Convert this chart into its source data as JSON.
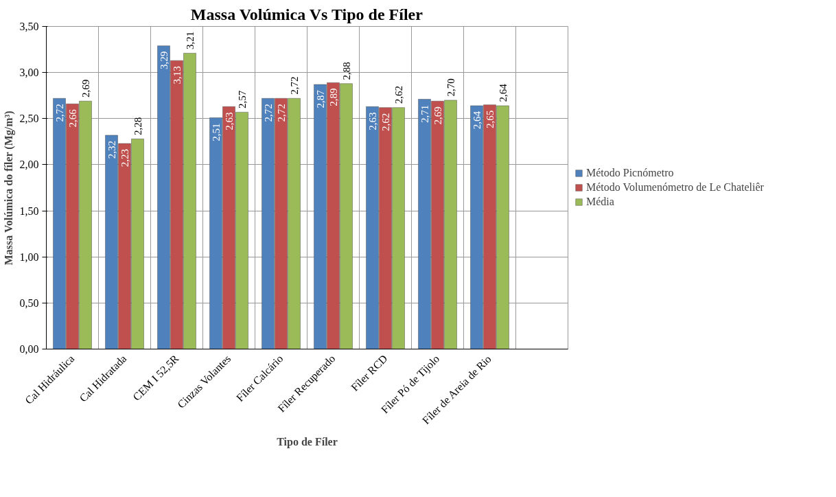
{
  "chart_data": {
    "type": "bar",
    "title": "Massa Volúmica Vs Tipo de Fíler",
    "xlabel": "Tipo de Fíler",
    "ylabel": "Massa Volúmica do fíler (Mg/m³)",
    "categories": [
      "Cal Hidráulica",
      "Cal Hidratada",
      "CEM I 52,5R",
      "Cinzas Volantes",
      "Fíler Calcário",
      "Fíler Recuperado",
      "Fíler RCD",
      "Fíler Pó de Tijolo",
      "Fíler de Areia de Rio",
      null
    ],
    "series": [
      {
        "name": "Método Picnómetro",
        "color": "#4f81bd",
        "values": [
          2.72,
          2.32,
          3.29,
          2.51,
          2.72,
          2.87,
          2.63,
          2.71,
          2.64,
          null
        ],
        "value_labels": [
          "2,72",
          "2,32",
          "3,29",
          "2,51",
          "2,72",
          "2,87",
          "2,63",
          "2,71",
          "2,64",
          null
        ]
      },
      {
        "name": "Método Volumenómetro de Le Chateliêr",
        "color": "#c0504d",
        "values": [
          2.66,
          2.23,
          3.13,
          2.63,
          2.72,
          2.89,
          2.62,
          2.69,
          2.65,
          null
        ],
        "value_labels": [
          "2,66",
          "2,23",
          "3,13",
          "2,63",
          "2,72",
          "2,89",
          "2,62",
          "2,69",
          "2,65",
          null
        ]
      },
      {
        "name": "Média",
        "color": "#9bbb59",
        "values": [
          2.69,
          2.28,
          3.21,
          2.57,
          2.72,
          2.88,
          2.62,
          2.7,
          2.64,
          null
        ],
        "value_labels": [
          "2,69",
          "2,28",
          "3,21",
          "2,57",
          "2,72",
          "2,88",
          "2,62",
          "2,70",
          "2,64",
          null
        ]
      }
    ],
    "ylim": [
      0,
      3.5
    ],
    "yticks": [
      {
        "value": 0,
        "label": "0,00"
      },
      {
        "value": 0.5,
        "label": "0,50"
      },
      {
        "value": 1,
        "label": "1,00"
      },
      {
        "value": 1.5,
        "label": "1,50"
      },
      {
        "value": 2,
        "label": "2,00"
      },
      {
        "value": 2.5,
        "label": "2,50"
      },
      {
        "value": 3,
        "label": "3,00"
      },
      {
        "value": 3.5,
        "label": "3,50"
      }
    ],
    "grid": true,
    "legend": "right"
  }
}
